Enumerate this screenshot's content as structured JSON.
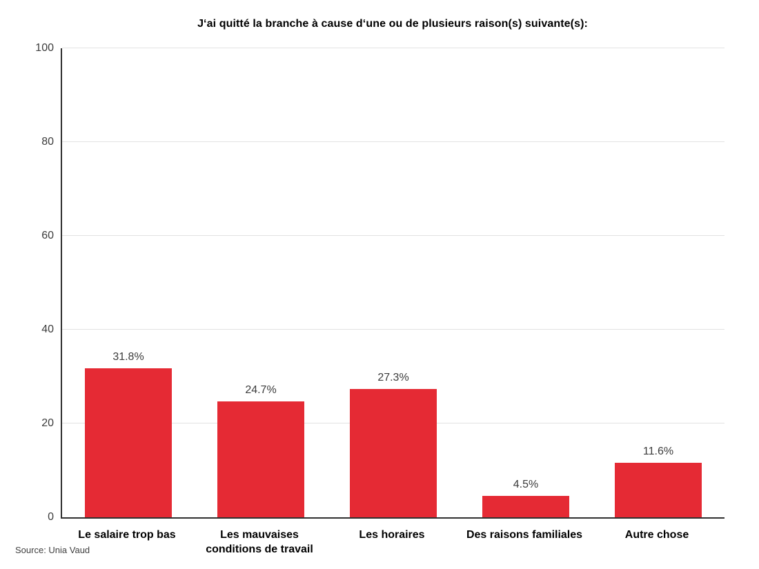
{
  "title": "J‘ai quitté la branche à cause d‘une ou de plusieurs raison(s) suivante(s):",
  "source": "Source: Unia Vaud",
  "chart_data": {
    "type": "bar",
    "title": "J‘ai quitté la branche à cause d‘une ou de plusieurs raison(s) suivante(s):",
    "categories": [
      "Le salaire trop bas",
      "Les mauvaises conditions de travail",
      "Les horaires",
      "Des raisons familiales",
      "Autre chose"
    ],
    "values": [
      31.8,
      24.7,
      27.3,
      4.5,
      11.6
    ],
    "value_labels": [
      "31.8%",
      "24.7%",
      "27.3%",
      "4.5%",
      "11.6%"
    ],
    "xlabel": "",
    "ylabel": "",
    "y_ticks": [
      0,
      20,
      40,
      60,
      80,
      100
    ],
    "ylim": [
      0,
      100
    ],
    "gridlines": "horizontal-light",
    "legend": "none",
    "bar_color": "#e52a34",
    "axis_color": "#2f2f2f",
    "gridline_color": "#e2e2e2",
    "source": "Source: Unia Vaud"
  }
}
